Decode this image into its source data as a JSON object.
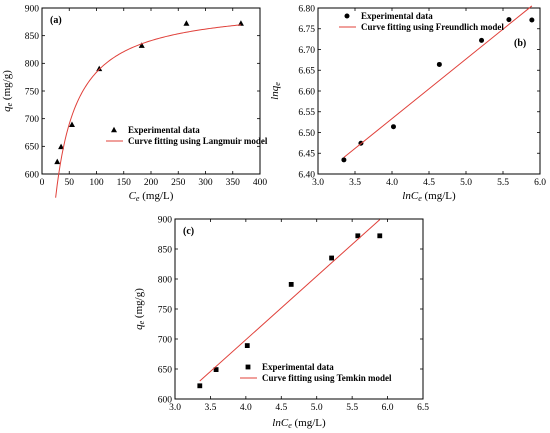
{
  "fit_color": "#e0403a",
  "marker_color": "#000000",
  "chart_data": [
    {
      "type": "scatter",
      "panel_label": "(a)",
      "xlabel_base": "C",
      "xlabel_sub": "e",
      "xlabel_unit": " (mg/L)",
      "ylabel_base": "q",
      "ylabel_sub": "e",
      "ylabel_unit": " (mg/g)",
      "xlim": [
        0,
        400
      ],
      "ylim": [
        600,
        900
      ],
      "xticks": [
        0,
        50,
        100,
        150,
        200,
        250,
        300,
        350,
        400
      ],
      "yticks": [
        600,
        650,
        700,
        750,
        800,
        850,
        900
      ],
      "tick_decimals": 0,
      "legend_position": "bottom-right",
      "marker": "triangle",
      "series": [
        {
          "name": "Experimental data",
          "kind": "points",
          "x": [
            28,
            35,
            55,
            105,
            183,
            265,
            365
          ],
          "y": [
            622,
            649,
            689,
            790,
            832,
            872,
            872
          ]
        },
        {
          "name": "Curve fitting using Langmuir model",
          "kind": "langmuir",
          "qmax": 907,
          "K": 0.0637,
          "x_range": [
            25,
            365
          ]
        }
      ]
    },
    {
      "type": "scatter",
      "panel_label": "(b)",
      "xlabel_base": "lnC",
      "xlabel_sub": "e",
      "xlabel_unit": " (mg/L)",
      "ylabel_base": "lnq",
      "ylabel_sub": "e",
      "ylabel_unit": "",
      "xlim": [
        3.0,
        6.0
      ],
      "ylim": [
        6.4,
        6.8
      ],
      "xticks": [
        3.0,
        3.5,
        4.0,
        4.5,
        5.0,
        5.5,
        6.0
      ],
      "yticks": [
        6.4,
        6.45,
        6.5,
        6.55,
        6.6,
        6.65,
        6.7,
        6.75,
        6.8
      ],
      "tick_decimals": 1,
      "ytick_decimals": 2,
      "legend_position": "top-left",
      "marker": "circle",
      "series": [
        {
          "name": "Experimental data",
          "kind": "points",
          "x": [
            3.35,
            3.58,
            4.02,
            4.64,
            5.21,
            5.58,
            5.89
          ],
          "y": [
            6.434,
            6.474,
            6.514,
            6.664,
            6.722,
            6.772,
            6.771
          ]
        },
        {
          "name": "Curve fitting using Freundlich model",
          "kind": "line",
          "x": [
            3.35,
            5.89
          ],
          "y": [
            6.44,
            6.805
          ]
        }
      ]
    },
    {
      "type": "scatter",
      "panel_label": "(c)",
      "xlabel_base": "lnC",
      "xlabel_sub": "e",
      "xlabel_unit": " (mg/L)",
      "ylabel_base": "q",
      "ylabel_sub": "e",
      "ylabel_unit": " (mg/g)",
      "xlim": [
        3.0,
        6.5
      ],
      "ylim": [
        600,
        900
      ],
      "xticks": [
        3.0,
        3.5,
        4.0,
        4.5,
        5.0,
        5.5,
        6.0,
        6.5
      ],
      "yticks": [
        600,
        650,
        700,
        750,
        800,
        850,
        900
      ],
      "tick_decimals": 1,
      "ytick_decimals": 0,
      "legend_position": "bottom-right",
      "marker": "square",
      "series": [
        {
          "name": "Experimental data",
          "kind": "points",
          "x": [
            3.35,
            3.58,
            4.02,
            4.64,
            5.21,
            5.58,
            5.89
          ],
          "y": [
            622,
            649,
            689,
            791,
            835,
            872,
            872
          ]
        },
        {
          "name": "Curve fitting using Temkin model",
          "kind": "line",
          "x": [
            3.35,
            5.89
          ],
          "y": [
            630,
            899
          ]
        }
      ]
    }
  ]
}
